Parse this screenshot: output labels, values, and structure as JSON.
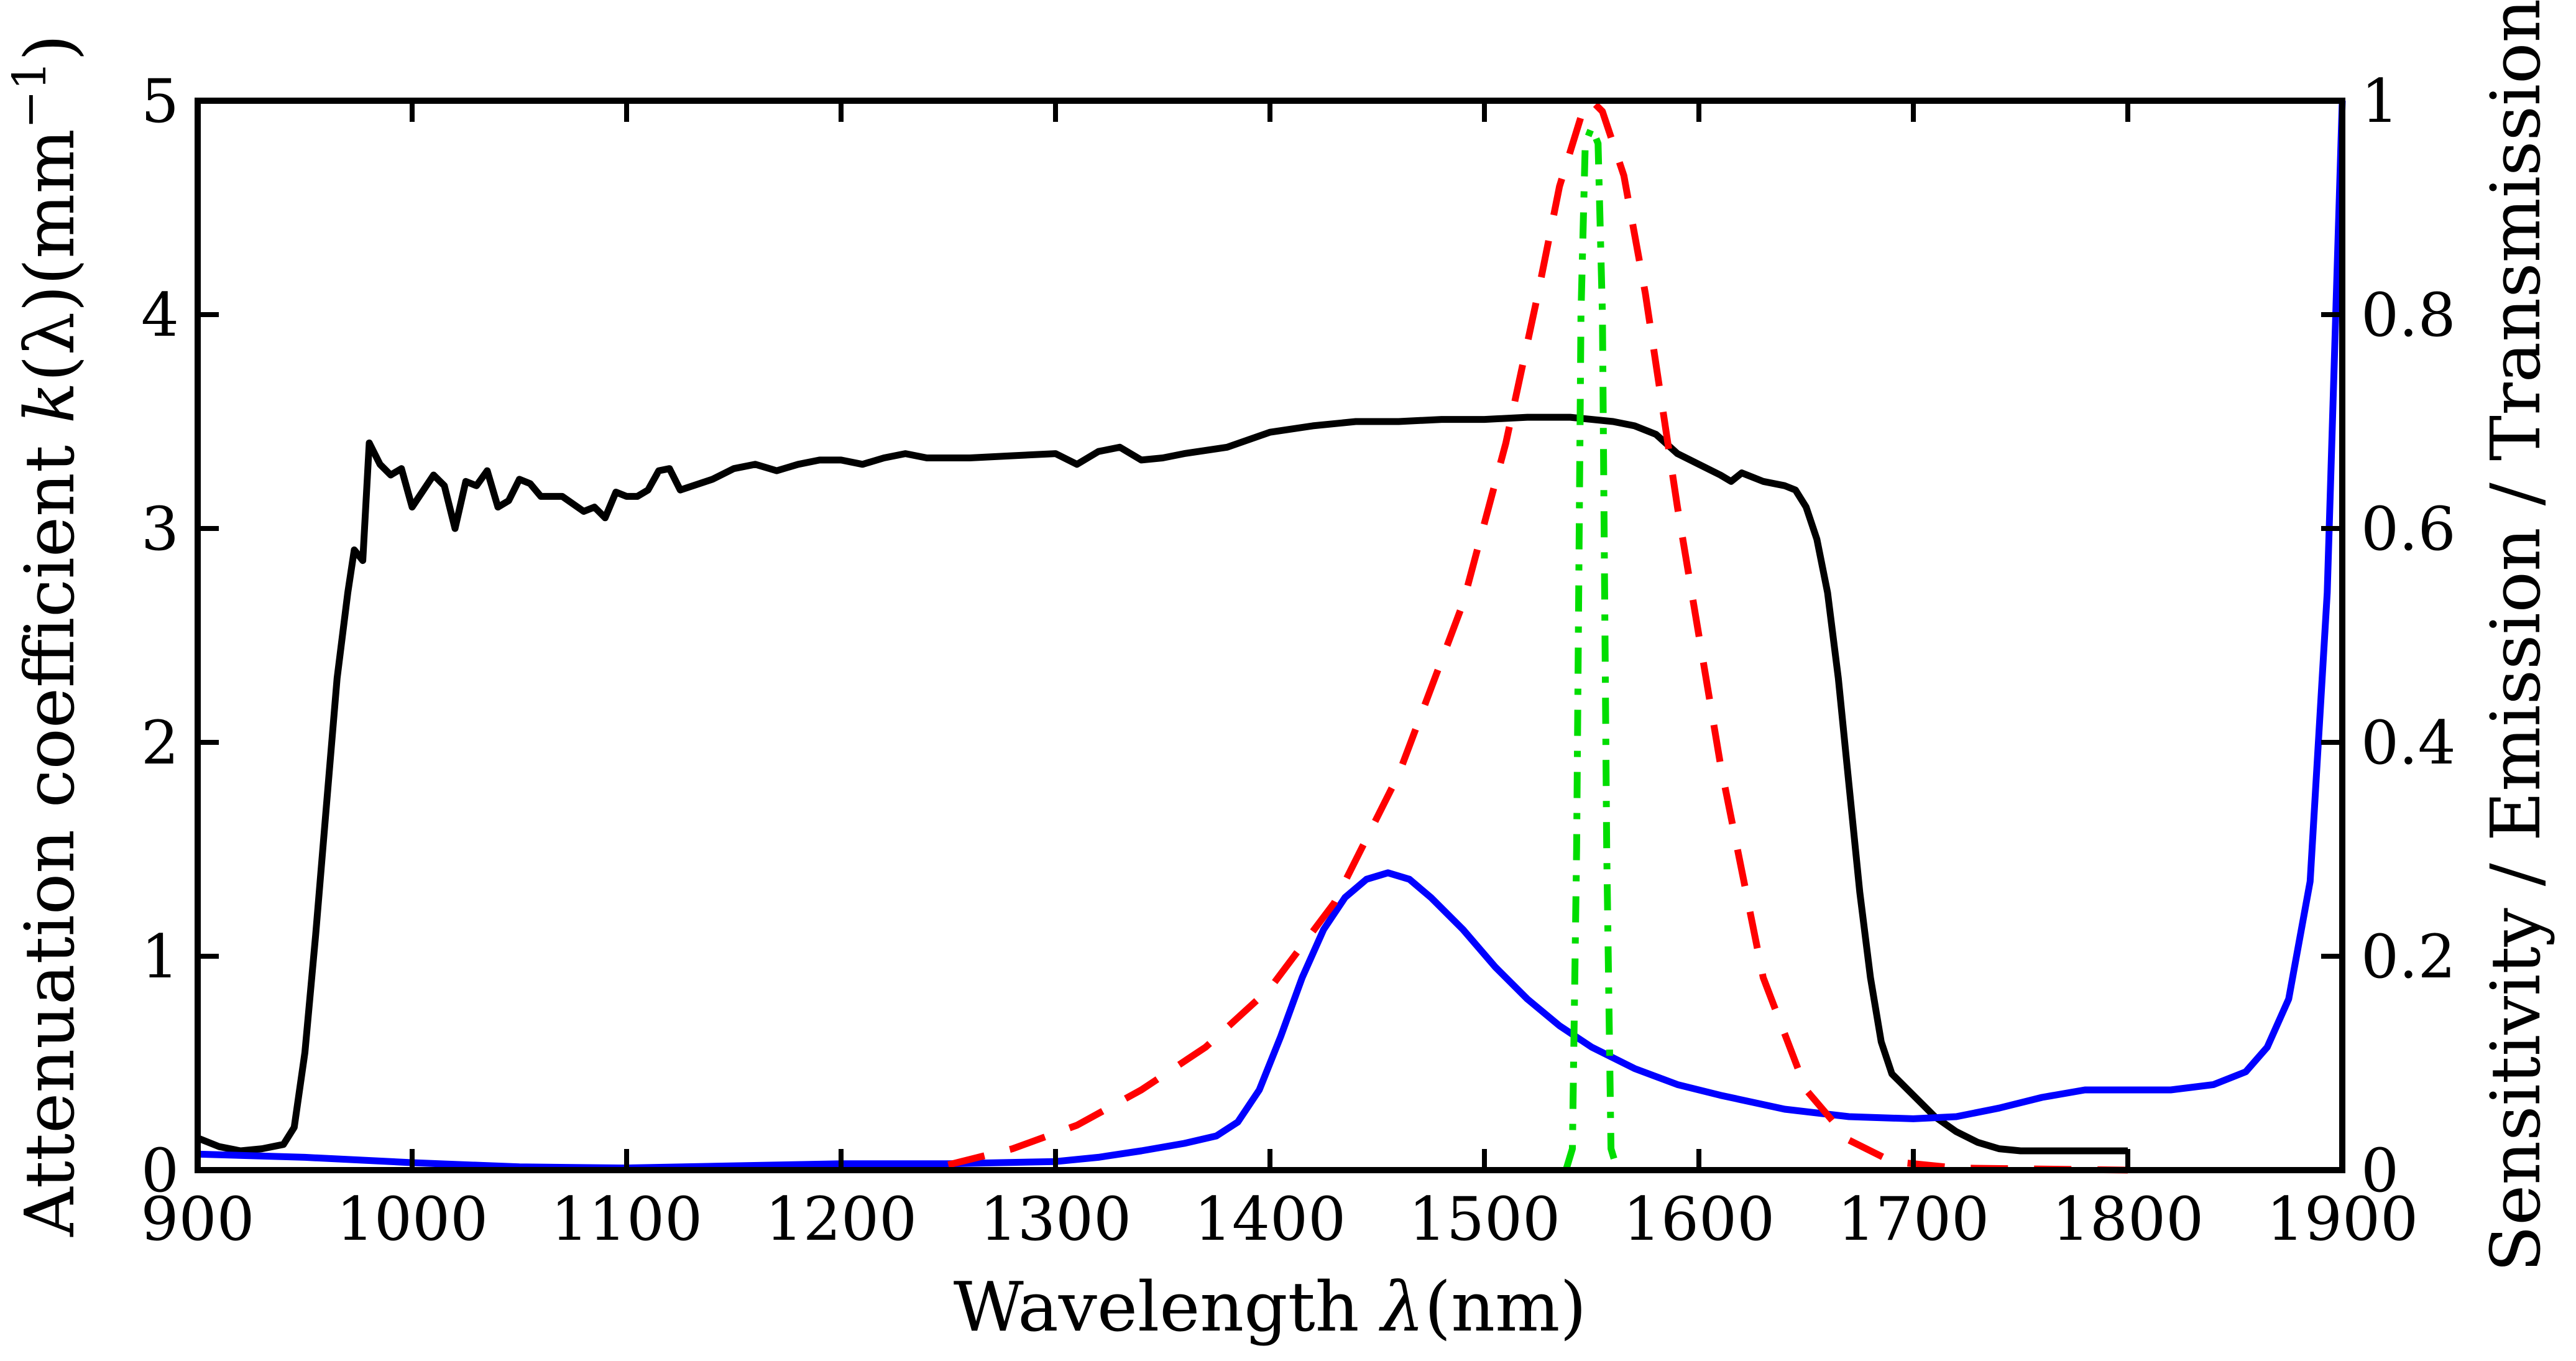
{
  "chart_data": {
    "type": "line",
    "title": "",
    "xlabel": "Wavelength λ(nm)",
    "xlabel_parts": {
      "prefix": "Wavelength ",
      "symbol": "λ",
      "suffix": "(nm)"
    },
    "ylabel_left": "Attenuation coefficient k(λ)(mm⁻¹)",
    "ylabel_left_parts": {
      "prefix": "Attenuation coefficient ",
      "symbol": "k",
      "paren": "(λ)",
      "unit": "(mm",
      "exp": "−1",
      "close": ")"
    },
    "ylabel_right": "Sensitivity / Emission / Transmission",
    "xlim": [
      900,
      1900
    ],
    "ylim_left": [
      0,
      5
    ],
    "ylim_right": [
      0,
      1
    ],
    "x_ticks": [
      900,
      1000,
      1100,
      1200,
      1300,
      1400,
      1500,
      1600,
      1700,
      1800,
      1900
    ],
    "y_left_ticks": [
      0,
      1,
      2,
      3,
      4,
      5
    ],
    "y_right_ticks": [
      0,
      0.2,
      0.4,
      0.6,
      0.8,
      1
    ],
    "y_right_tick_labels": [
      "0",
      "0.2",
      "0.4",
      "0.6",
      "0.8",
      "1"
    ],
    "grid": false,
    "series": [
      {
        "name": "Attenuation coefficient",
        "axis": "left",
        "color": "#000000",
        "style": "solid",
        "points": [
          [
            900,
            0.15
          ],
          [
            910,
            0.11
          ],
          [
            920,
            0.09
          ],
          [
            930,
            0.1
          ],
          [
            940,
            0.12
          ],
          [
            945,
            0.2
          ],
          [
            950,
            0.55
          ],
          [
            955,
            1.1
          ],
          [
            960,
            1.7
          ],
          [
            965,
            2.3
          ],
          [
            970,
            2.7
          ],
          [
            973,
            2.9
          ],
          [
            977,
            2.85
          ],
          [
            980,
            3.4
          ],
          [
            985,
            3.3
          ],
          [
            990,
            3.25
          ],
          [
            995,
            3.28
          ],
          [
            1000,
            3.1
          ],
          [
            1010,
            3.25
          ],
          [
            1015,
            3.2
          ],
          [
            1020,
            3.0
          ],
          [
            1025,
            3.22
          ],
          [
            1030,
            3.2
          ],
          [
            1035,
            3.27
          ],
          [
            1040,
            3.1
          ],
          [
            1045,
            3.13
          ],
          [
            1050,
            3.23
          ],
          [
            1055,
            3.21
          ],
          [
            1060,
            3.15
          ],
          [
            1070,
            3.15
          ],
          [
            1080,
            3.08
          ],
          [
            1085,
            3.1
          ],
          [
            1090,
            3.05
          ],
          [
            1095,
            3.17
          ],
          [
            1100,
            3.15
          ],
          [
            1105,
            3.15
          ],
          [
            1110,
            3.18
          ],
          [
            1115,
            3.27
          ],
          [
            1120,
            3.28
          ],
          [
            1125,
            3.18
          ],
          [
            1140,
            3.23
          ],
          [
            1150,
            3.28
          ],
          [
            1160,
            3.3
          ],
          [
            1170,
            3.27
          ],
          [
            1180,
            3.3
          ],
          [
            1190,
            3.32
          ],
          [
            1200,
            3.32
          ],
          [
            1210,
            3.3
          ],
          [
            1220,
            3.33
          ],
          [
            1230,
            3.35
          ],
          [
            1240,
            3.33
          ],
          [
            1260,
            3.33
          ],
          [
            1280,
            3.34
          ],
          [
            1300,
            3.35
          ],
          [
            1310,
            3.3
          ],
          [
            1320,
            3.36
          ],
          [
            1330,
            3.38
          ],
          [
            1340,
            3.32
          ],
          [
            1350,
            3.33
          ],
          [
            1360,
            3.35
          ],
          [
            1380,
            3.38
          ],
          [
            1400,
            3.45
          ],
          [
            1420,
            3.48
          ],
          [
            1440,
            3.5
          ],
          [
            1460,
            3.5
          ],
          [
            1480,
            3.51
          ],
          [
            1500,
            3.51
          ],
          [
            1520,
            3.52
          ],
          [
            1540,
            3.52
          ],
          [
            1560,
            3.5
          ],
          [
            1570,
            3.48
          ],
          [
            1580,
            3.44
          ],
          [
            1590,
            3.35
          ],
          [
            1600,
            3.3
          ],
          [
            1610,
            3.25
          ],
          [
            1615,
            3.22
          ],
          [
            1620,
            3.26
          ],
          [
            1630,
            3.22
          ],
          [
            1640,
            3.2
          ],
          [
            1645,
            3.18
          ],
          [
            1650,
            3.1
          ],
          [
            1655,
            2.95
          ],
          [
            1660,
            2.7
          ],
          [
            1665,
            2.3
          ],
          [
            1670,
            1.8
          ],
          [
            1675,
            1.3
          ],
          [
            1680,
            0.9
          ],
          [
            1685,
            0.6
          ],
          [
            1690,
            0.45
          ],
          [
            1700,
            0.35
          ],
          [
            1710,
            0.25
          ],
          [
            1720,
            0.18
          ],
          [
            1730,
            0.13
          ],
          [
            1740,
            0.1
          ],
          [
            1750,
            0.09
          ],
          [
            1760,
            0.09
          ],
          [
            1770,
            0.09
          ],
          [
            1780,
            0.09
          ],
          [
            1790,
            0.09
          ],
          [
            1800,
            0.09
          ]
        ]
      },
      {
        "name": "Sensitivity",
        "axis": "right",
        "color": "#0000ff",
        "style": "solid",
        "points": [
          [
            900,
            0.015
          ],
          [
            950,
            0.012
          ],
          [
            1000,
            0.007
          ],
          [
            1050,
            0.003
          ],
          [
            1100,
            0.002
          ],
          [
            1150,
            0.004
          ],
          [
            1200,
            0.006
          ],
          [
            1250,
            0.006
          ],
          [
            1300,
            0.008
          ],
          [
            1320,
            0.012
          ],
          [
            1340,
            0.018
          ],
          [
            1360,
            0.025
          ],
          [
            1375,
            0.032
          ],
          [
            1385,
            0.045
          ],
          [
            1395,
            0.075
          ],
          [
            1405,
            0.125
          ],
          [
            1415,
            0.18
          ],
          [
            1425,
            0.225
          ],
          [
            1435,
            0.255
          ],
          [
            1445,
            0.272
          ],
          [
            1455,
            0.278
          ],
          [
            1465,
            0.272
          ],
          [
            1475,
            0.255
          ],
          [
            1490,
            0.225
          ],
          [
            1505,
            0.19
          ],
          [
            1520,
            0.16
          ],
          [
            1535,
            0.135
          ],
          [
            1550,
            0.115
          ],
          [
            1570,
            0.095
          ],
          [
            1590,
            0.08
          ],
          [
            1610,
            0.07
          ],
          [
            1640,
            0.057
          ],
          [
            1670,
            0.05
          ],
          [
            1700,
            0.048
          ],
          [
            1720,
            0.05
          ],
          [
            1740,
            0.058
          ],
          [
            1760,
            0.068
          ],
          [
            1780,
            0.075
          ],
          [
            1800,
            0.075
          ],
          [
            1820,
            0.075
          ],
          [
            1840,
            0.08
          ],
          [
            1855,
            0.092
          ],
          [
            1865,
            0.115
          ],
          [
            1875,
            0.16
          ],
          [
            1885,
            0.27
          ],
          [
            1893,
            0.54
          ],
          [
            1900,
            1.0
          ]
        ]
      },
      {
        "name": "Emission",
        "axis": "right",
        "color": "#ff0000",
        "style": "dashed",
        "points": [
          [
            1250,
            0.005
          ],
          [
            1280,
            0.02
          ],
          [
            1310,
            0.042
          ],
          [
            1340,
            0.075
          ],
          [
            1370,
            0.115
          ],
          [
            1400,
            0.17
          ],
          [
            1430,
            0.25
          ],
          [
            1460,
            0.37
          ],
          [
            1490,
            0.53
          ],
          [
            1510,
            0.68
          ],
          [
            1525,
            0.82
          ],
          [
            1535,
            0.92
          ],
          [
            1545,
            0.985
          ],
          [
            1550,
            1.0
          ],
          [
            1555,
            0.99
          ],
          [
            1565,
            0.93
          ],
          [
            1575,
            0.82
          ],
          [
            1590,
            0.62
          ],
          [
            1610,
            0.38
          ],
          [
            1630,
            0.18
          ],
          [
            1650,
            0.075
          ],
          [
            1670,
            0.028
          ],
          [
            1690,
            0.008
          ],
          [
            1720,
            0.002
          ],
          [
            1800,
            0.0
          ]
        ]
      },
      {
        "name": "Transmission",
        "axis": "right",
        "color": "#00dd00",
        "style": "dashdot",
        "points": [
          [
            1538,
            0.0
          ],
          [
            1541,
            0.02
          ],
          [
            1543,
            0.3
          ],
          [
            1545,
            0.8
          ],
          [
            1547,
            0.96
          ],
          [
            1550,
            0.975
          ],
          [
            1553,
            0.96
          ],
          [
            1555,
            0.8
          ],
          [
            1557,
            0.3
          ],
          [
            1559,
            0.02
          ],
          [
            1562,
            0.0
          ]
        ]
      }
    ]
  }
}
